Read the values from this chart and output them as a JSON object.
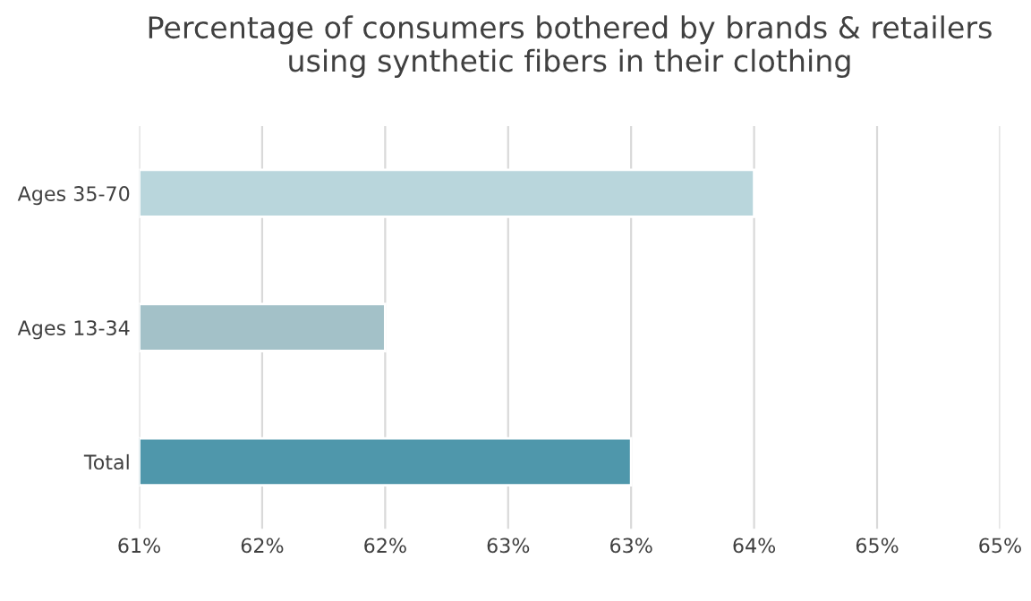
{
  "chart_data": {
    "type": "bar",
    "orientation": "horizontal",
    "title": "Percentage of consumers bothered by brands & retailers\nusing synthetic fibers in their clothing",
    "categories": [
      "Ages 35-70",
      "Ages 13-34",
      "Total"
    ],
    "values": [
      64.0,
      62.2,
      63.4
    ],
    "colors": [
      "#b9d6dc",
      "#a3c1c8",
      "#4f97ab"
    ],
    "xlim": [
      61,
      65.2
    ],
    "xticks": [
      {
        "value": 61,
        "label": "61%"
      },
      {
        "value": 61.6,
        "label": "62%"
      },
      {
        "value": 62.2,
        "label": "62%"
      },
      {
        "value": 62.8,
        "label": "63%"
      },
      {
        "value": 63.4,
        "label": "63%"
      },
      {
        "value": 64.0,
        "label": "64%"
      },
      {
        "value": 64.6,
        "label": "65%"
      },
      {
        "value": 65.2,
        "label": "65%"
      }
    ],
    "grid": "x"
  }
}
